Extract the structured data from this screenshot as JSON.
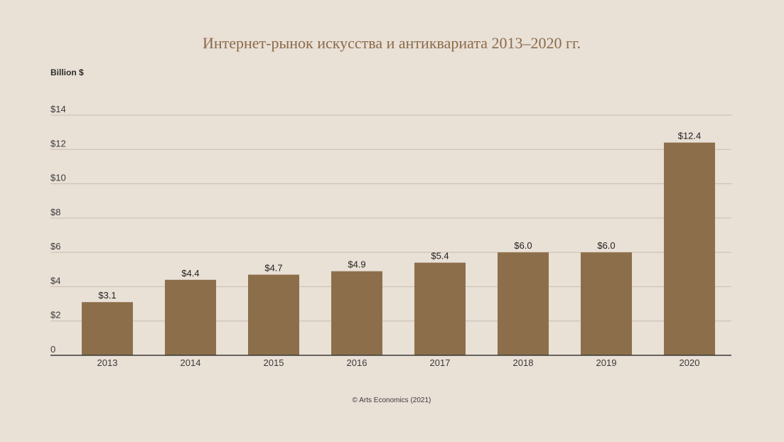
{
  "chart_data": {
    "type": "bar",
    "title": "Интернет-рынок искусства и антиквариата 2013–2020 гг.",
    "ylabel": "Billion $",
    "xlabel": "",
    "categories": [
      "2013",
      "2014",
      "2015",
      "2016",
      "2017",
      "2018",
      "2019",
      "2020"
    ],
    "values": [
      3.1,
      4.4,
      4.7,
      4.9,
      5.4,
      6.0,
      6.0,
      12.4
    ],
    "data_labels": [
      "$3.1",
      "$4.4",
      "$4.7",
      "$4.9",
      "$5.4",
      "$6.0",
      "$6.0",
      "$12.4"
    ],
    "ylim": [
      0,
      14
    ],
    "yticks": [
      0,
      2,
      4,
      6,
      8,
      10,
      12,
      14
    ],
    "ytick_labels": [
      "0",
      "$2",
      "$4",
      "$6",
      "$8",
      "$10",
      "$12",
      "$14"
    ],
    "grid": true,
    "bar_color": "#8c6f4a",
    "source": "© Arts Economics (2021)"
  }
}
